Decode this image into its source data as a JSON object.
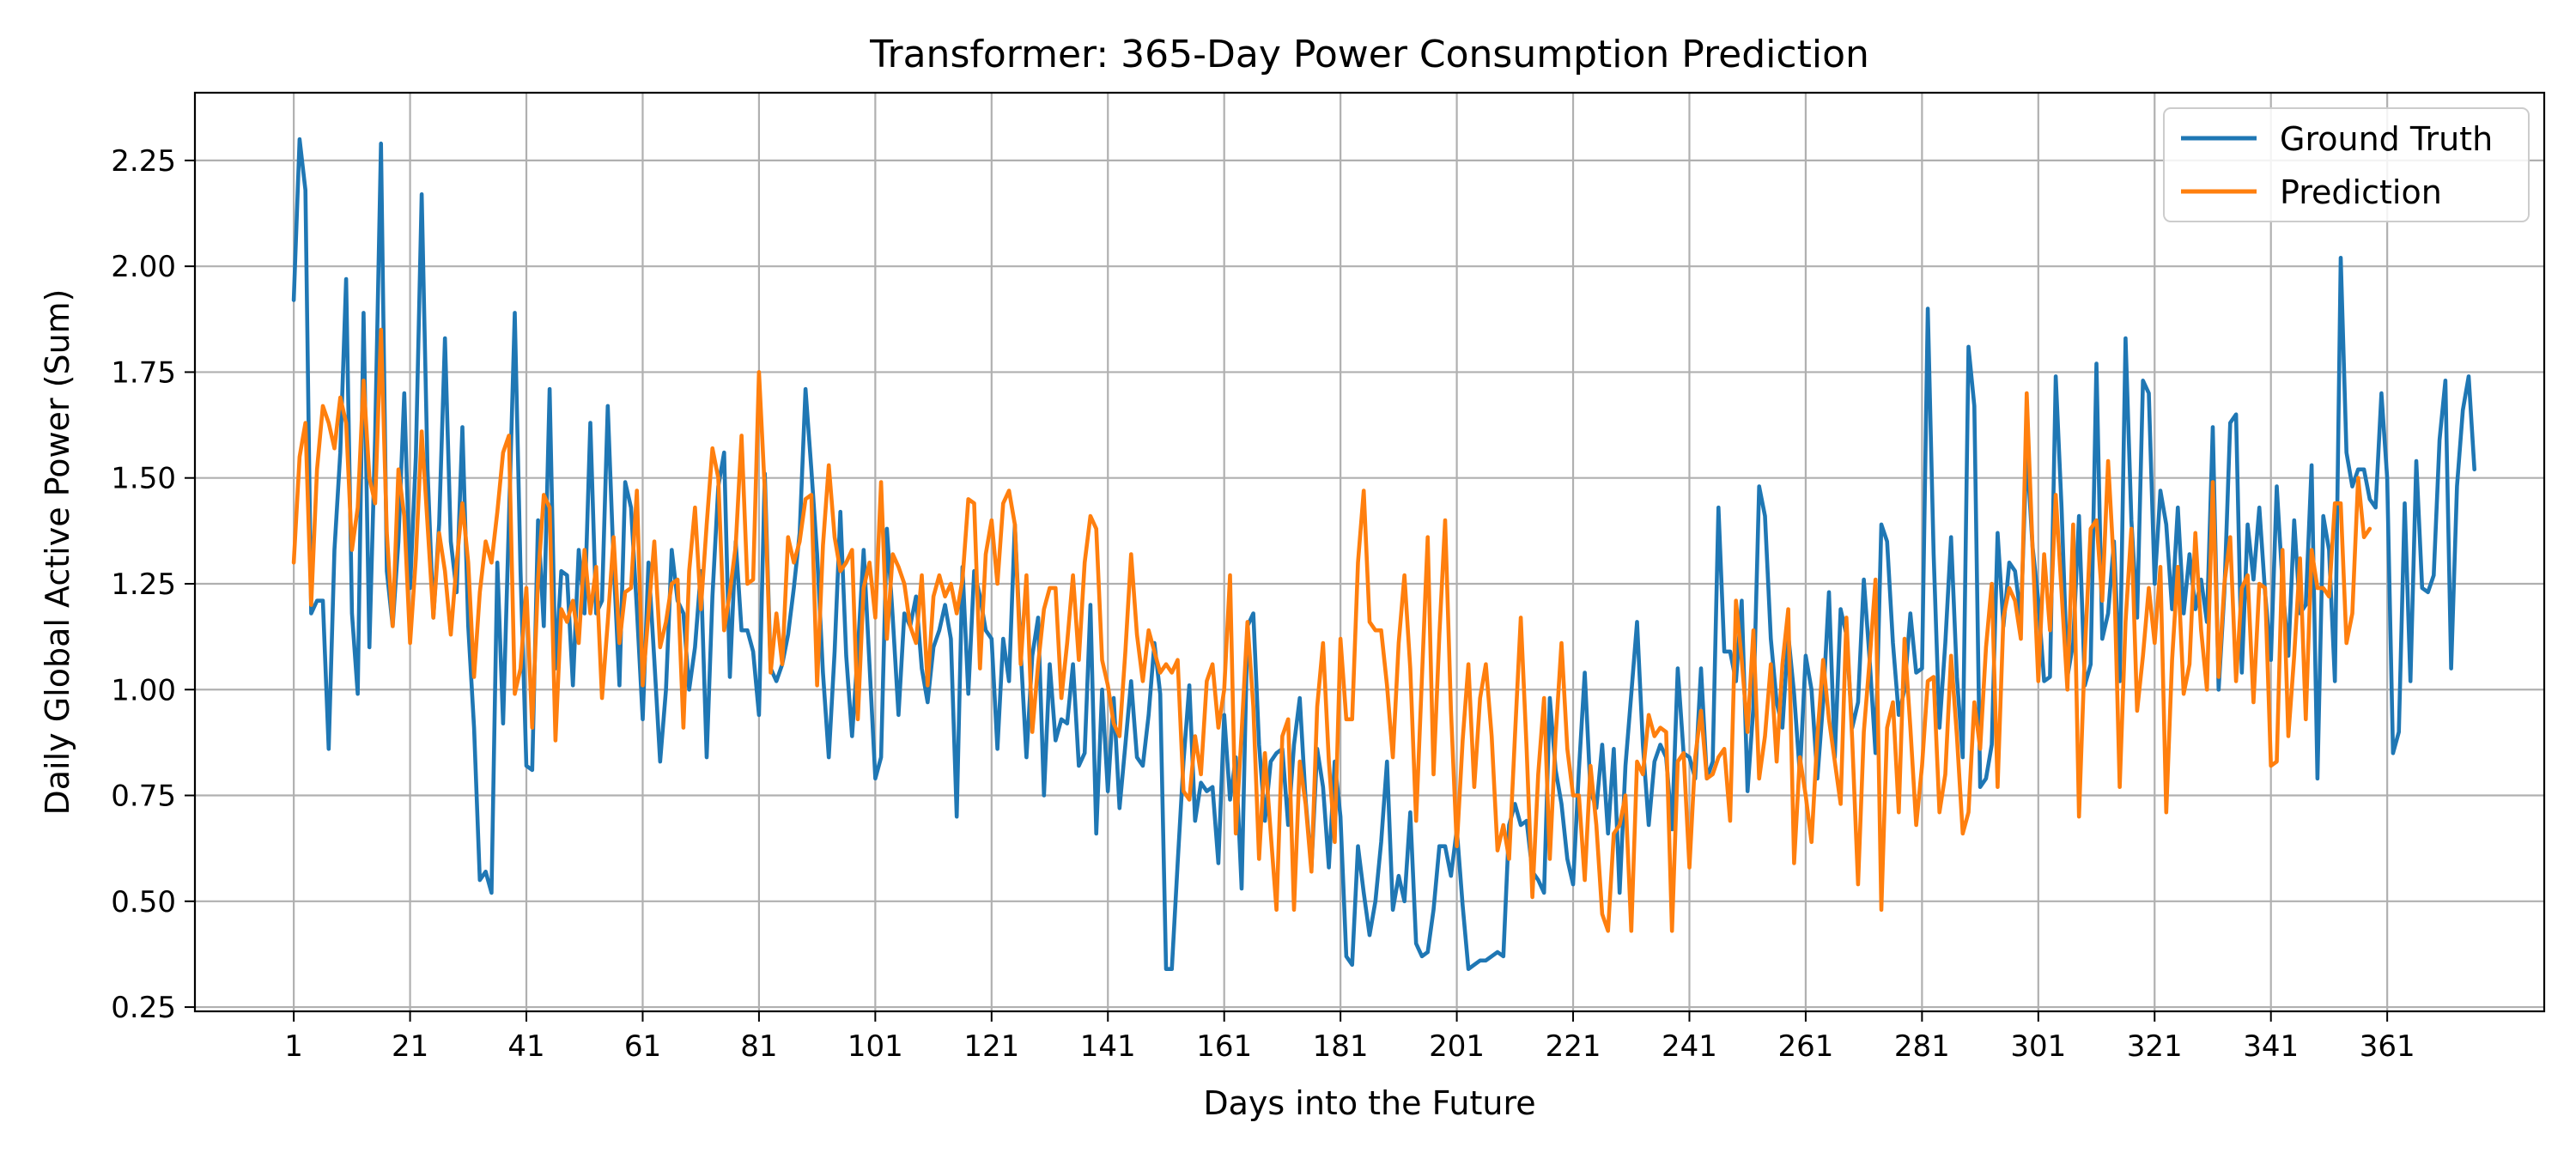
{
  "chart_data": {
    "type": "line",
    "title": "Transformer: 365-Day Power Consumption Prediction",
    "xlabel": "Days into the Future",
    "ylabel": "Daily Global Active Power (Sum)",
    "xlim": [
      -16,
      388
    ],
    "ylim": [
      0.24,
      2.41
    ],
    "x_ticks": [
      1,
      21,
      41,
      61,
      81,
      101,
      121,
      141,
      161,
      181,
      201,
      221,
      241,
      261,
      281,
      301,
      321,
      341,
      361
    ],
    "y_ticks": [
      0.25,
      0.5,
      0.75,
      1.0,
      1.25,
      1.5,
      1.75,
      2.0,
      2.25
    ],
    "grid": true,
    "legend_position": "top-right",
    "x_start": 1,
    "series": [
      {
        "name": "Ground Truth",
        "color": "#1f77b4",
        "values": [
          1.92,
          2.3,
          2.18,
          1.18,
          1.21,
          1.21,
          0.86,
          1.33,
          1.56,
          1.97,
          1.18,
          0.99,
          1.89,
          1.1,
          1.6,
          2.29,
          1.28,
          1.15,
          1.35,
          1.7,
          1.24,
          1.55,
          2.17,
          1.52,
          1.17,
          1.39,
          1.83,
          1.35,
          1.23,
          1.62,
          1.15,
          0.91,
          0.55,
          0.57,
          0.52,
          1.3,
          0.92,
          1.4,
          1.89,
          1.28,
          0.82,
          0.81,
          1.4,
          1.15,
          1.71,
          1.05,
          1.28,
          1.27,
          1.01,
          1.33,
          1.18,
          1.63,
          1.18,
          1.21,
          1.67,
          1.3,
          1.01,
          1.49,
          1.43,
          1.19,
          0.93,
          1.3,
          1.07,
          0.83,
          1.0,
          1.33,
          1.21,
          1.18,
          1.0,
          1.1,
          1.28,
          0.84,
          1.22,
          1.48,
          1.56,
          1.03,
          1.35,
          1.14,
          1.14,
          1.09,
          0.94,
          1.51,
          1.05,
          1.02,
          1.06,
          1.13,
          1.24,
          1.37,
          1.71,
          1.52,
          1.32,
          1.04,
          0.84,
          1.09,
          1.42,
          1.08,
          0.89,
          1.09,
          1.33,
          1.06,
          0.79,
          0.84,
          1.38,
          1.17,
          0.94,
          1.18,
          1.15,
          1.22,
          1.05,
          0.97,
          1.1,
          1.14,
          1.2,
          1.12,
          0.7,
          1.29,
          0.99,
          1.28,
          1.22,
          1.14,
          1.12,
          0.86,
          1.12,
          1.02,
          1.39,
          1.09,
          0.84,
          1.08,
          1.17,
          0.75,
          1.06,
          0.88,
          0.93,
          0.92,
          1.06,
          0.82,
          0.85,
          1.2,
          0.66,
          1.0,
          0.76,
          0.98,
          0.72,
          0.87,
          1.02,
          0.84,
          0.82,
          0.94,
          1.11,
          0.99,
          0.34,
          0.34,
          0.59,
          0.83,
          1.01,
          0.69,
          0.78,
          0.76,
          0.77,
          0.59,
          0.94,
          0.74,
          0.84,
          0.53,
          1.15,
          1.18,
          0.87,
          0.69,
          0.83,
          0.85,
          0.86,
          0.68,
          0.87,
          0.98,
          0.74,
          0.58,
          0.86,
          0.77,
          0.58,
          0.83,
          0.7,
          0.37,
          0.35,
          0.63,
          0.52,
          0.42,
          0.5,
          0.64,
          0.83,
          0.48,
          0.56,
          0.5,
          0.71,
          0.4,
          0.37,
          0.38,
          0.48,
          0.63,
          0.63,
          0.56,
          0.67,
          0.49,
          0.34,
          0.35,
          0.36,
          0.36,
          0.37,
          0.38,
          0.37,
          0.68,
          0.73,
          0.68,
          0.69,
          0.57,
          0.55,
          0.52,
          0.98,
          0.81,
          0.73,
          0.6,
          0.54,
          0.81,
          1.04,
          0.76,
          0.72,
          0.87,
          0.66,
          0.86,
          0.52,
          0.82,
          0.99,
          1.16,
          0.87,
          0.68,
          0.83,
          0.87,
          0.84,
          0.67,
          1.05,
          0.85,
          0.84,
          0.79,
          1.05,
          0.79,
          0.83,
          1.43,
          1.09,
          1.09,
          1.02,
          1.21,
          0.76,
          0.96,
          1.48,
          1.41,
          1.12,
          0.97,
          0.91,
          1.13,
          0.99,
          0.8,
          1.08,
          1.0,
          0.79,
          0.97,
          1.23,
          0.84,
          1.19,
          1.13,
          0.91,
          0.97,
          1.26,
          1.07,
          0.85,
          1.39,
          1.35,
          1.11,
          0.94,
          1.0,
          1.18,
          1.04,
          1.05,
          1.9,
          1.32,
          0.91,
          1.11,
          1.36,
          1.03,
          0.84,
          1.81,
          1.67,
          0.77,
          0.79,
          0.87,
          1.37,
          1.15,
          1.3,
          1.28,
          1.17,
          1.57,
          1.34,
          1.21,
          1.02,
          1.03,
          1.74,
          1.43,
          1.03,
          1.11,
          1.41,
          1.01,
          1.06,
          1.77,
          1.12,
          1.18,
          1.35,
          1.02,
          1.83,
          1.4,
          1.17,
          1.73,
          1.7,
          1.25,
          1.47,
          1.39,
          1.19,
          1.43,
          1.18,
          1.32,
          1.19,
          1.26,
          1.16,
          1.62,
          1.0,
          1.23,
          1.63,
          1.65,
          1.04,
          1.39,
          1.26,
          1.43,
          1.23,
          1.07,
          1.48,
          1.25,
          1.08,
          1.4,
          1.18,
          1.2,
          1.53,
          0.79,
          1.41,
          1.33,
          1.02,
          2.02,
          1.56,
          1.48,
          1.52,
          1.52,
          1.45,
          1.43,
          1.7,
          1.5,
          0.85,
          0.9,
          1.44,
          1.02,
          1.54,
          1.24,
          1.23,
          1.27,
          1.59,
          1.73,
          1.05,
          1.48,
          1.66,
          1.74,
          1.52
        ]
      },
      {
        "name": "Prediction",
        "color": "#ff7f0e",
        "values": [
          1.3,
          1.55,
          1.63,
          1.2,
          1.52,
          1.67,
          1.63,
          1.57,
          1.69,
          1.63,
          1.33,
          1.43,
          1.73,
          1.5,
          1.44,
          1.85,
          1.37,
          1.15,
          1.52,
          1.41,
          1.11,
          1.31,
          1.61,
          1.39,
          1.17,
          1.37,
          1.28,
          1.13,
          1.3,
          1.44,
          1.3,
          1.03,
          1.23,
          1.35,
          1.3,
          1.42,
          1.56,
          1.6,
          0.99,
          1.05,
          1.24,
          0.91,
          1.26,
          1.46,
          1.43,
          0.88,
          1.19,
          1.16,
          1.21,
          1.11,
          1.33,
          1.18,
          1.29,
          0.98,
          1.16,
          1.36,
          1.11,
          1.23,
          1.24,
          1.47,
          1.01,
          1.18,
          1.35,
          1.1,
          1.16,
          1.25,
          1.26,
          0.91,
          1.28,
          1.43,
          1.19,
          1.39,
          1.57,
          1.5,
          1.14,
          1.23,
          1.34,
          1.6,
          1.25,
          1.26,
          1.75,
          1.47,
          1.04,
          1.18,
          1.06,
          1.36,
          1.3,
          1.35,
          1.45,
          1.46,
          1.01,
          1.34,
          1.53,
          1.36,
          1.28,
          1.3,
          1.33,
          0.93,
          1.24,
          1.3,
          1.17,
          1.49,
          1.12,
          1.32,
          1.29,
          1.25,
          1.15,
          1.11,
          1.27,
          1.01,
          1.22,
          1.27,
          1.22,
          1.25,
          1.18,
          1.26,
          1.45,
          1.44,
          1.05,
          1.32,
          1.4,
          1.25,
          1.44,
          1.47,
          1.39,
          1.06,
          1.27,
          0.9,
          1.06,
          1.19,
          1.24,
          1.24,
          0.98,
          1.11,
          1.27,
          1.07,
          1.3,
          1.41,
          1.38,
          1.07,
          1.01,
          0.92,
          0.89,
          1.09,
          1.32,
          1.13,
          1.02,
          1.14,
          1.09,
          1.04,
          1.06,
          1.04,
          1.07,
          0.76,
          0.74,
          0.89,
          0.8,
          1.02,
          1.06,
          0.91,
          1.0,
          1.27,
          0.66,
          0.9,
          1.16,
          0.96,
          0.6,
          0.85,
          0.66,
          0.48,
          0.89,
          0.93,
          0.48,
          0.83,
          0.73,
          0.57,
          0.96,
          1.11,
          0.83,
          0.64,
          1.12,
          0.93,
          0.93,
          1.3,
          1.47,
          1.16,
          1.14,
          1.14,
          1.01,
          0.84,
          1.11,
          1.27,
          1.05,
          0.69,
          1.03,
          1.36,
          0.8,
          1.13,
          1.4,
          0.95,
          0.63,
          0.88,
          1.06,
          0.77,
          0.98,
          1.06,
          0.89,
          0.62,
          0.68,
          0.6,
          0.89,
          1.17,
          0.86,
          0.51,
          0.8,
          0.98,
          0.6,
          0.89,
          1.11,
          0.86,
          0.75,
          0.75,
          0.55,
          0.82,
          0.68,
          0.47,
          0.43,
          0.66,
          0.68,
          0.75,
          0.43,
          0.83,
          0.8,
          0.94,
          0.89,
          0.91,
          0.9,
          0.43,
          0.83,
          0.85,
          0.58,
          0.84,
          0.95,
          0.79,
          0.8,
          0.84,
          0.86,
          0.69,
          1.21,
          1.07,
          0.9,
          1.14,
          0.79,
          0.89,
          1.06,
          0.83,
          1.06,
          1.19,
          0.59,
          0.84,
          0.75,
          0.64,
          0.89,
          1.07,
          0.93,
          0.83,
          0.73,
          1.17,
          0.88,
          0.54,
          0.9,
          1.07,
          1.26,
          0.48,
          0.91,
          0.97,
          0.71,
          1.12,
          0.91,
          0.68,
          0.82,
          1.02,
          1.03,
          0.71,
          0.8,
          1.08,
          0.89,
          0.66,
          0.71,
          0.97,
          0.86,
          1.1,
          1.25,
          0.77,
          1.17,
          1.24,
          1.21,
          1.12,
          1.7,
          1.34,
          1.02,
          1.32,
          1.14,
          1.46,
          1.23,
          1.0,
          1.39,
          0.7,
          1.09,
          1.38,
          1.4,
          1.21,
          1.54,
          1.29,
          0.77,
          1.16,
          1.38,
          0.95,
          1.08,
          1.24,
          1.11,
          1.29,
          0.71,
          1.07,
          1.29,
          0.99,
          1.06,
          1.37,
          1.14,
          1.0,
          1.49,
          1.03,
          1.25,
          1.36,
          1.02,
          1.24,
          1.27,
          0.97,
          1.25,
          1.24,
          0.82,
          0.83,
          1.33,
          0.89,
          1.08,
          1.31,
          0.93,
          1.33,
          1.24,
          1.24,
          1.22,
          1.44,
          1.44,
          1.11,
          1.18,
          1.5,
          1.36,
          1.38
        ]
      }
    ]
  }
}
